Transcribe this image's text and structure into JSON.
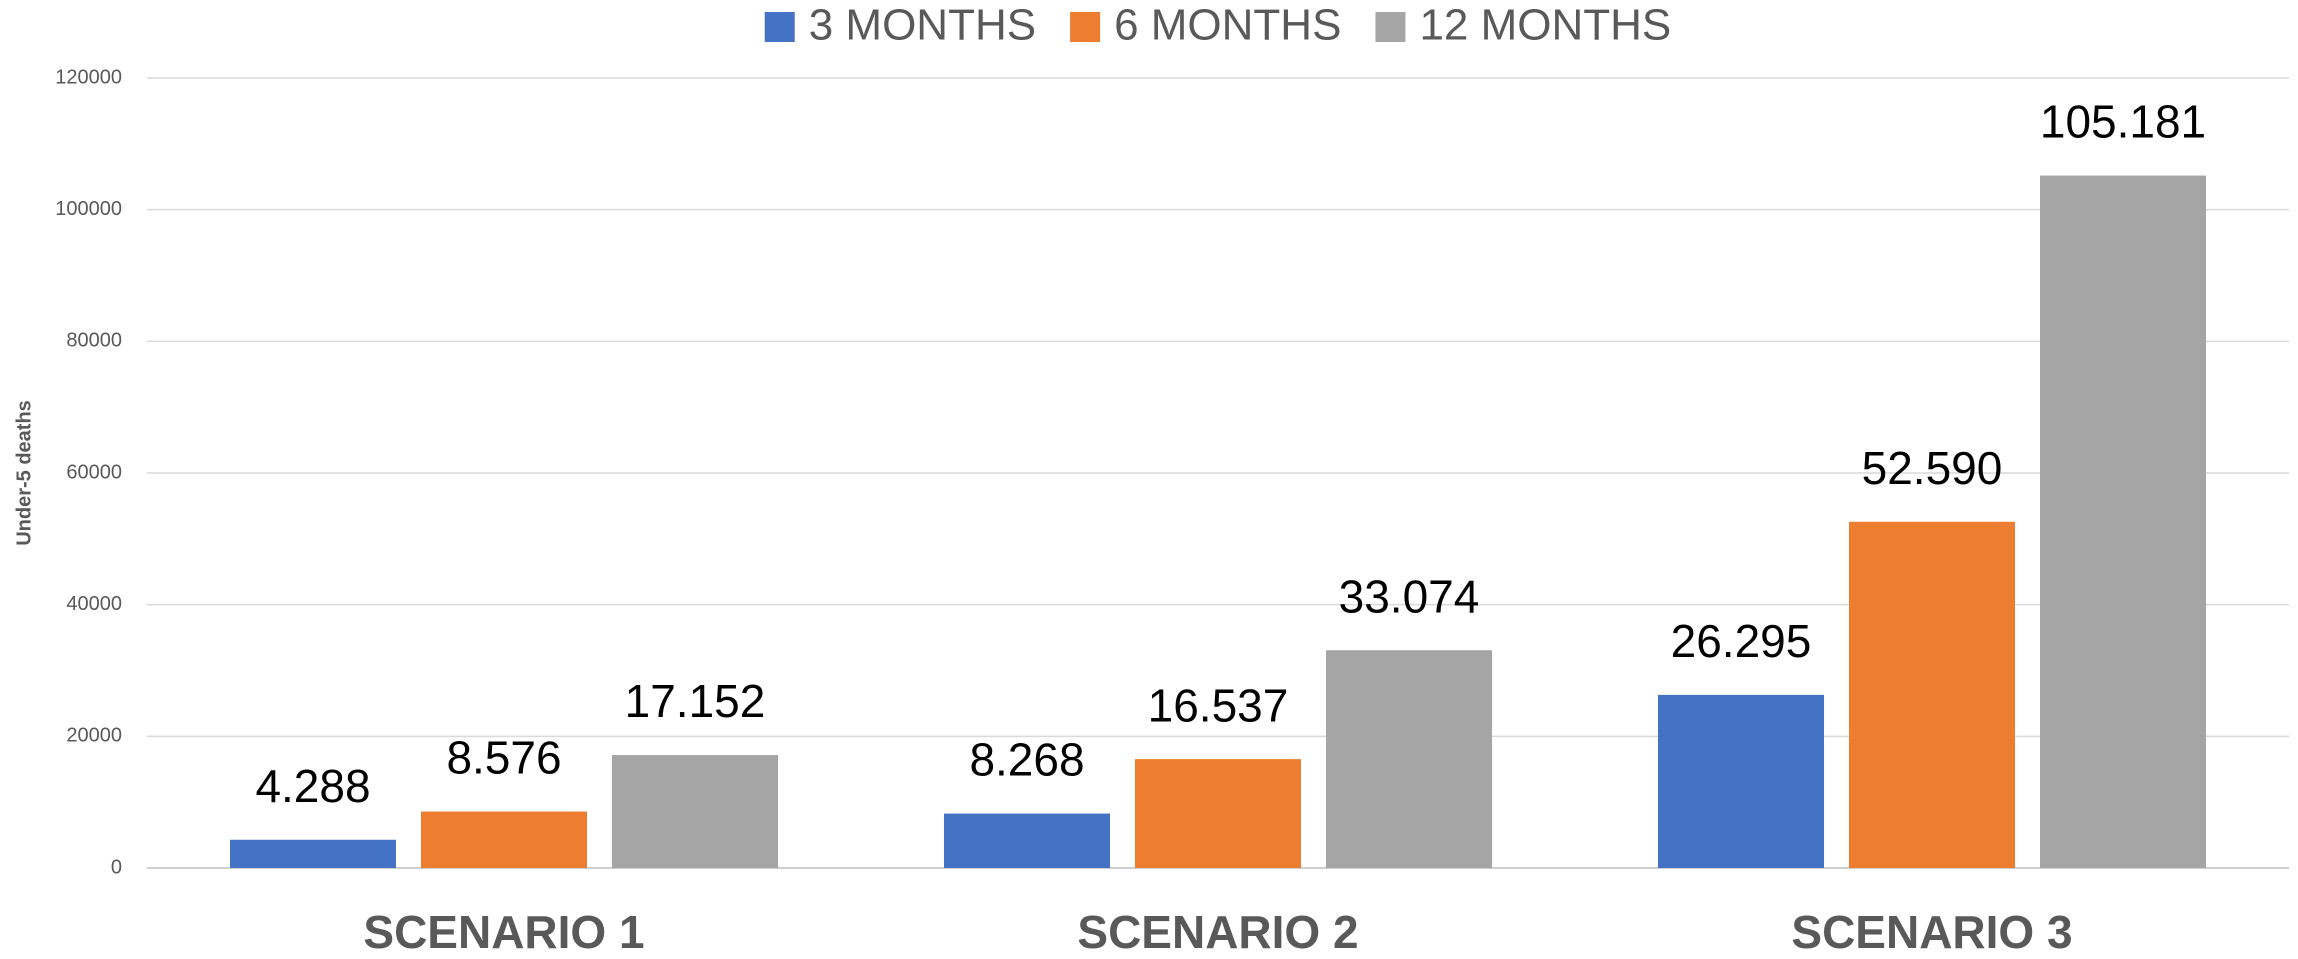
{
  "chart_data": {
    "type": "bar",
    "categories": [
      "SCENARIO 1",
      "SCENARIO 2",
      "SCENARIO 3"
    ],
    "y_label": "Under-5 deaths",
    "series": [
      {
        "name": "3 MONTHS",
        "color": "#4472c4",
        "values": [
          4288,
          8268,
          26295
        ],
        "value_labels": [
          "4.288",
          "8.268",
          "26.295"
        ]
      },
      {
        "name": "6 MONTHS",
        "color": "#ed7d31",
        "values": [
          8576,
          16537,
          52590
        ],
        "value_labels": [
          "8.576",
          "16.537",
          "52.590"
        ]
      },
      {
        "name": "12 MONTHS",
        "color": "#a5a5a5",
        "values": [
          17152,
          33074,
          105181
        ],
        "value_labels": [
          "17.152",
          "33.074",
          "105.181"
        ]
      }
    ],
    "ylim": [
      0,
      120000
    ],
    "yticks": [
      0,
      20000,
      40000,
      60000,
      80000,
      100000,
      120000
    ],
    "grid": true,
    "legend": "top"
  }
}
